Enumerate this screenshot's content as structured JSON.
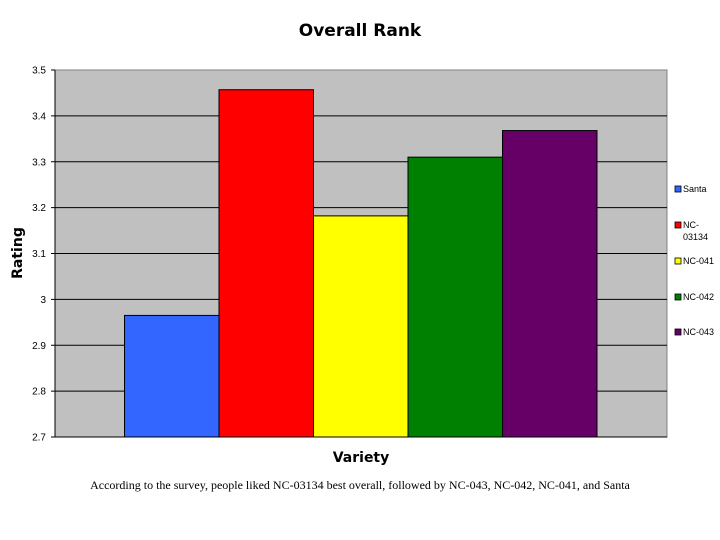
{
  "chart_data": {
    "type": "bar",
    "title": "Overall Rank",
    "xlabel": "Variety",
    "ylabel": "Rating",
    "ylim": [
      2.7,
      3.5
    ],
    "yticks": [
      "2.7",
      "2.8",
      "2.9",
      "3",
      "3.1",
      "3.2",
      "3.3",
      "3.4",
      "3.5"
    ],
    "grid": true,
    "legend_position": "right",
    "plot_background": "#C0C0C0",
    "series": [
      {
        "name": "Santa",
        "value": 2.965,
        "color": "#3366FF",
        "legend_lines": [
          "Santa"
        ]
      },
      {
        "name": "NC-03134",
        "value": 3.457,
        "color": "#FF0000",
        "legend_lines": [
          "NC-",
          "03134"
        ]
      },
      {
        "name": "NC-041",
        "value": 3.182,
        "color": "#FFFF00",
        "legend_lines": [
          "NC-041"
        ]
      },
      {
        "name": "NC-042",
        "value": 3.31,
        "color": "#008000",
        "legend_lines": [
          "NC-042"
        ]
      },
      {
        "name": "NC-043",
        "value": 3.368,
        "color": "#660066",
        "legend_lines": [
          "NC-043"
        ]
      }
    ]
  },
  "caption": "According to the survey, people liked NC-03134 best overall, followed by NC-043, NC-042, NC-041, and Santa"
}
